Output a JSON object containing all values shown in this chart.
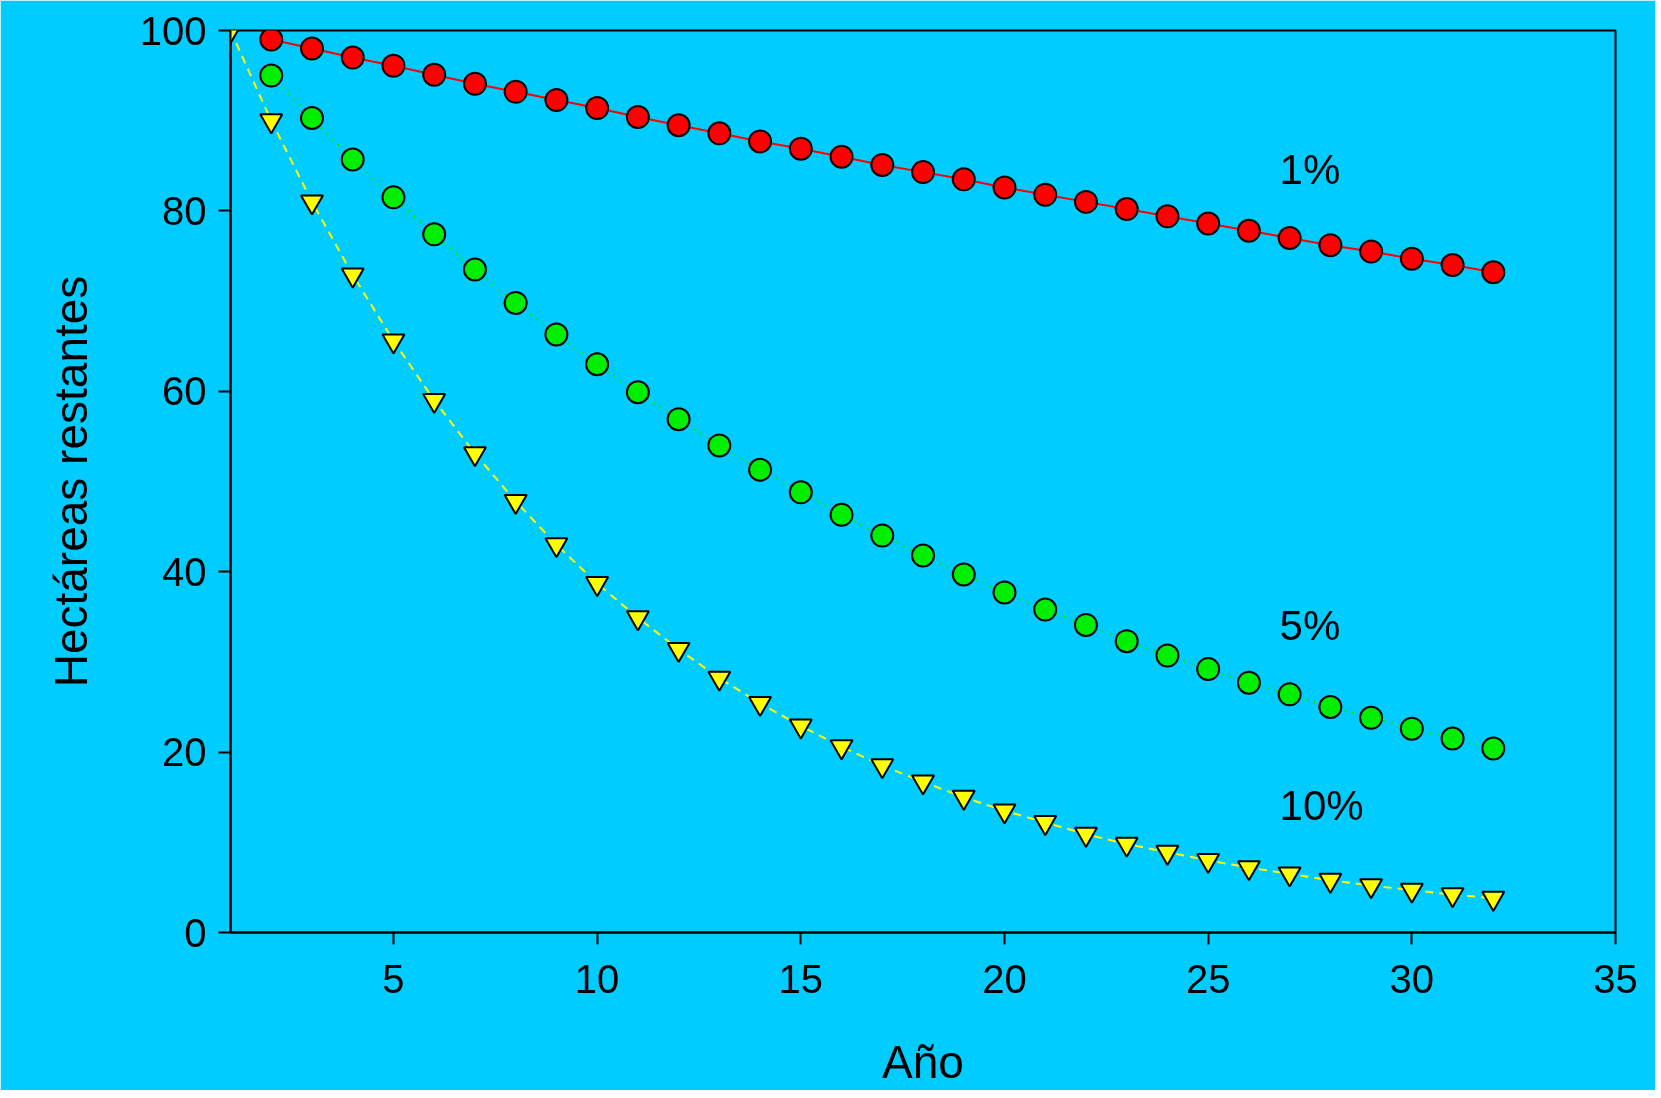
{
  "chart_data": {
    "type": "line",
    "xlabel": "Año",
    "ylabel": "Hectáreas restantes",
    "x": [
      1,
      2,
      3,
      4,
      5,
      6,
      7,
      8,
      9,
      10,
      11,
      12,
      13,
      14,
      15,
      16,
      17,
      18,
      19,
      20,
      21,
      22,
      23,
      24,
      25,
      26,
      27,
      28,
      29,
      30,
      31,
      32
    ],
    "series": [
      {
        "name": "1%",
        "color": "#ff0000",
        "marker": "circle",
        "line_style": "solid",
        "values": [
          null,
          99,
          98.0,
          97.0,
          96.1,
          95.1,
          94.1,
          93.2,
          92.3,
          91.4,
          90.4,
          89.5,
          88.6,
          87.7,
          86.9,
          86.0,
          85.1,
          84.3,
          83.5,
          82.6,
          81.8,
          81.0,
          80.2,
          79.4,
          78.6,
          77.8,
          77.0,
          76.2,
          75.5,
          74.7,
          74.0,
          73.2
        ]
      },
      {
        "name": "5%",
        "color": "#00ee00",
        "marker": "circle",
        "line_style": "dotted",
        "values": [
          null,
          95,
          90.3,
          85.7,
          81.5,
          77.4,
          73.5,
          69.8,
          66.3,
          63.0,
          59.9,
          56.9,
          54.0,
          51.3,
          48.8,
          46.3,
          44.0,
          41.8,
          39.7,
          37.7,
          35.8,
          34.1,
          32.3,
          30.7,
          29.2,
          27.7,
          26.4,
          25.0,
          23.8,
          22.6,
          21.5,
          20.4
        ]
      },
      {
        "name": "10%",
        "color": "#ffff00",
        "marker": "triangle",
        "line_style": "dashed",
        "values": [
          100,
          90,
          81,
          72.9,
          65.6,
          59.0,
          53.1,
          47.8,
          43.0,
          38.7,
          34.9,
          31.4,
          28.2,
          25.4,
          22.9,
          20.6,
          18.5,
          16.7,
          15.0,
          13.5,
          12.2,
          10.9,
          9.8,
          8.9,
          8.0,
          7.2,
          6.5,
          5.8,
          5.2,
          4.7,
          4.2,
          3.8
        ]
      }
    ],
    "xlim": [
      1,
      35
    ],
    "xticks": [
      5,
      10,
      15,
      20,
      25,
      30,
      35
    ],
    "ylim": [
      0,
      100
    ],
    "yticks": [
      0,
      20,
      40,
      60,
      80,
      100
    ],
    "grid": false
  }
}
